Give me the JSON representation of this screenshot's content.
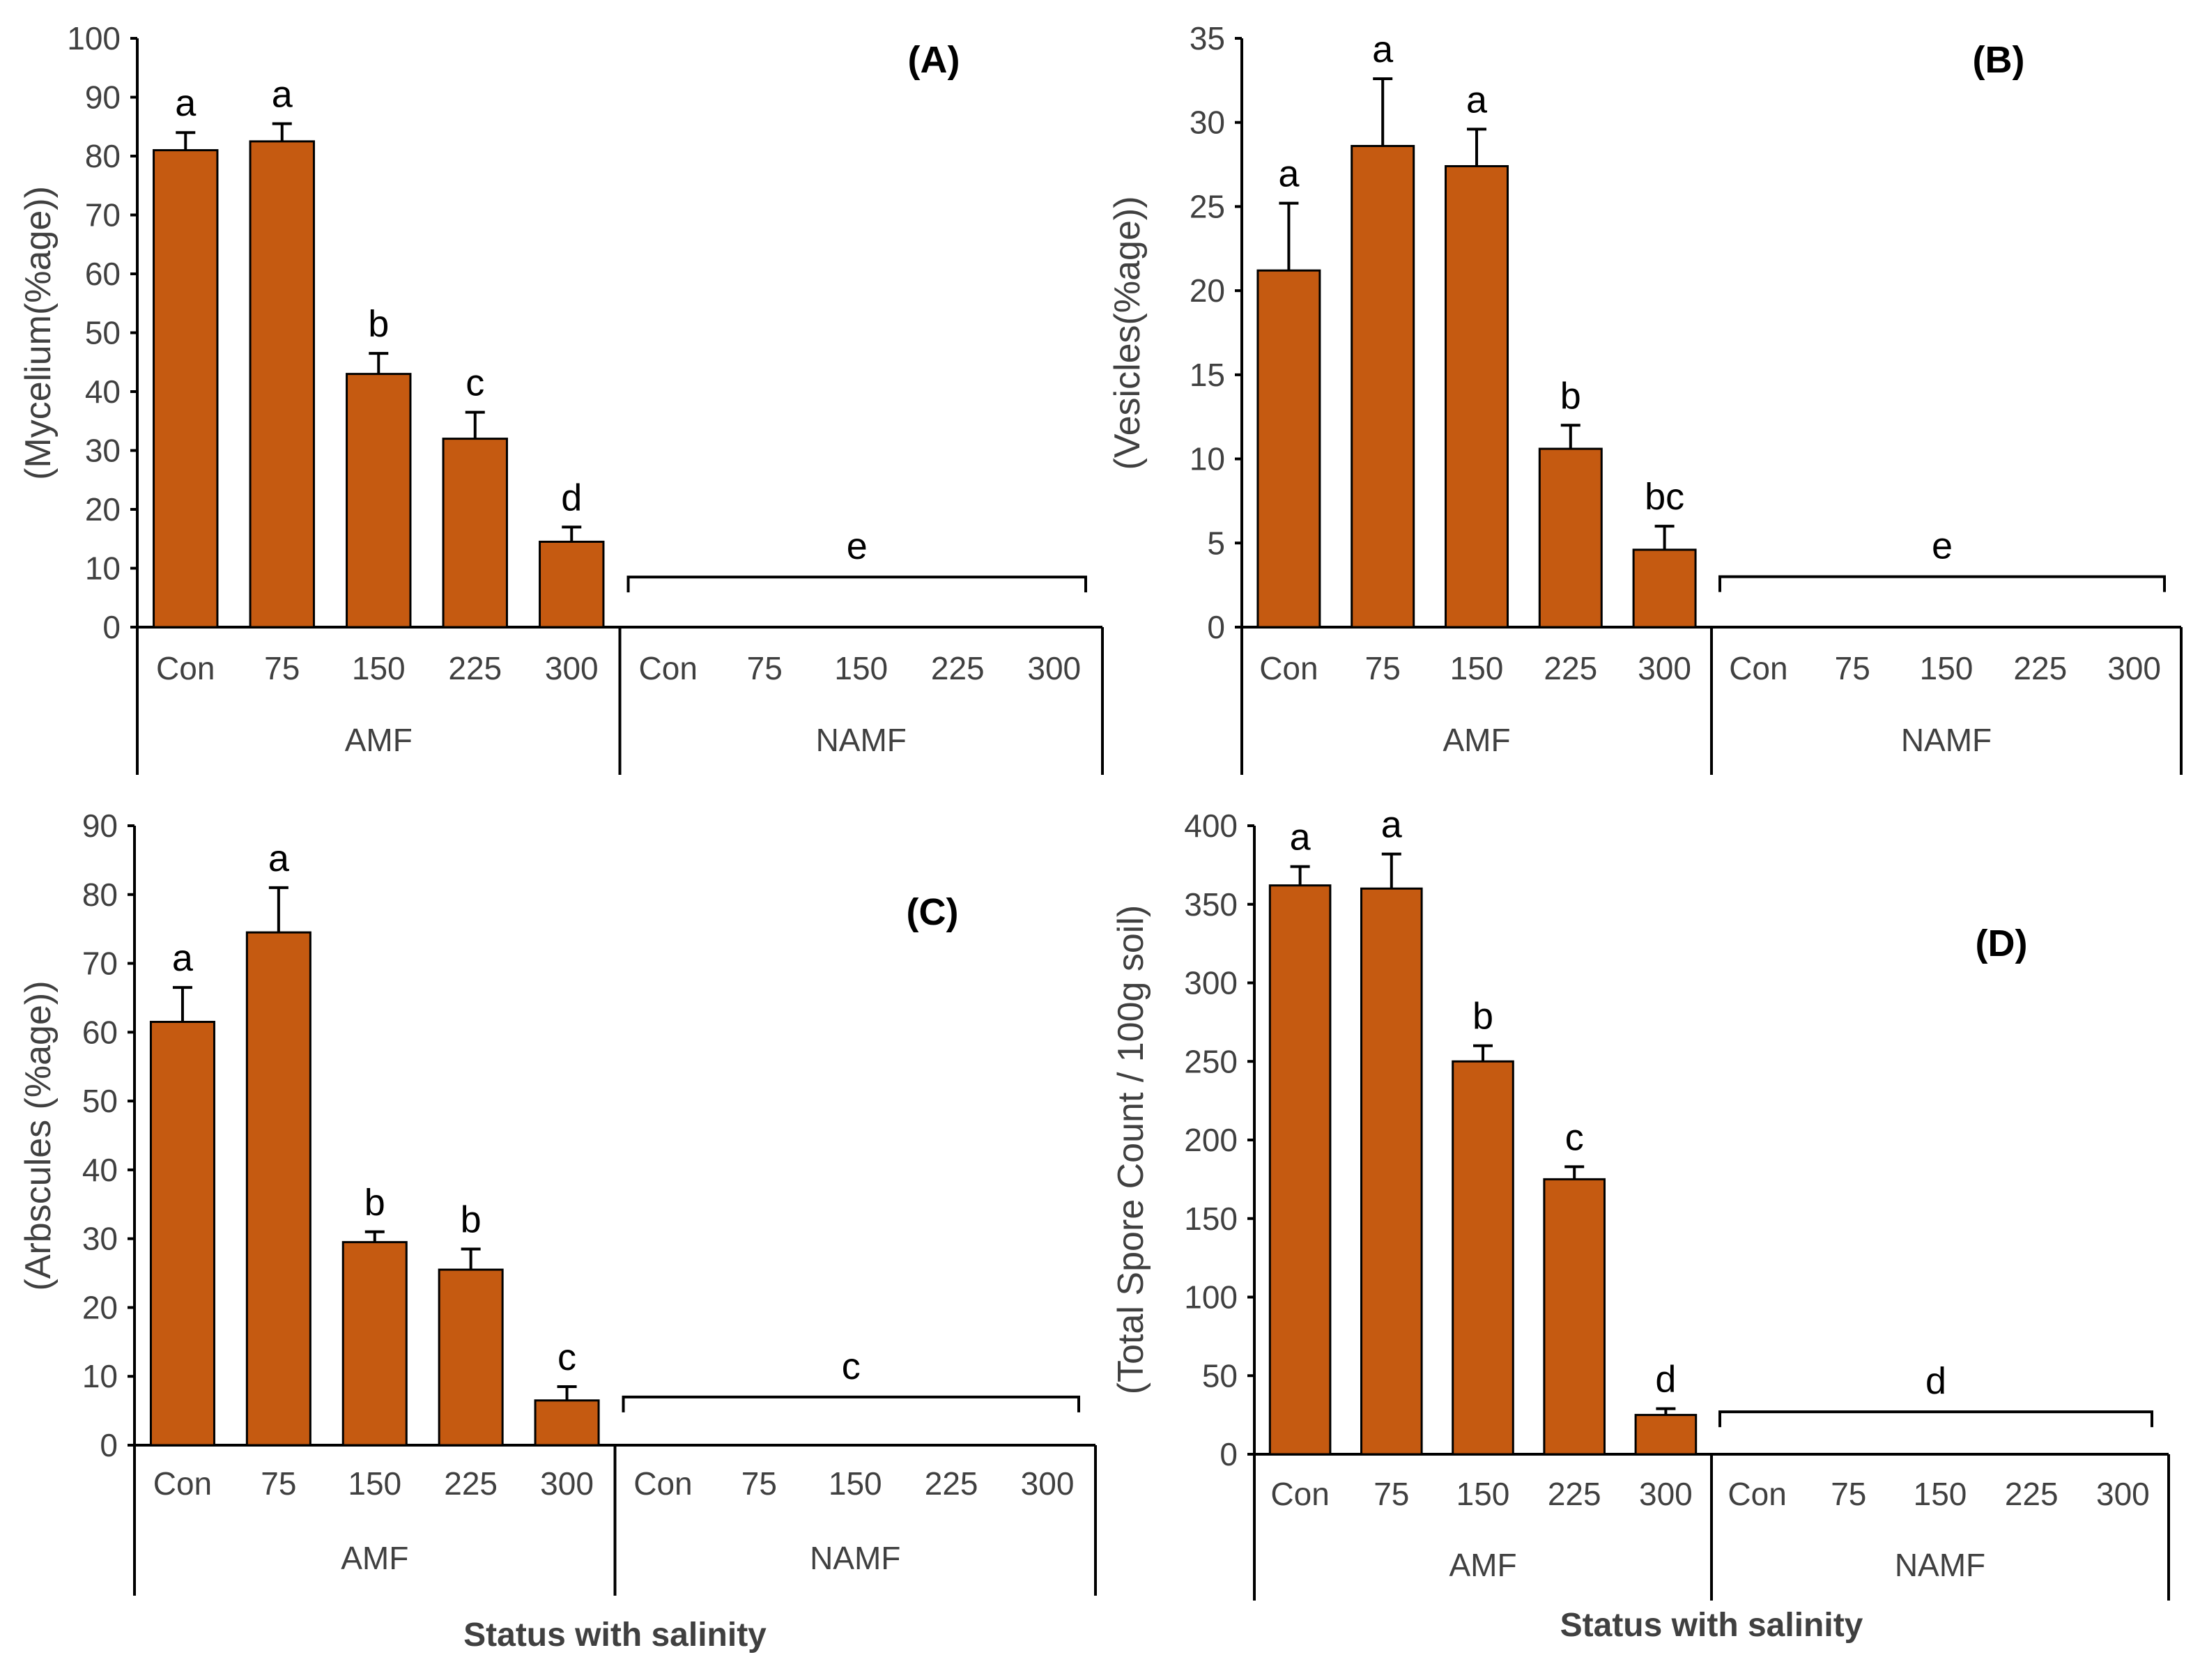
{
  "colors": {
    "bar": "#C55A11",
    "axis": "#000000",
    "text": "#404040"
  },
  "chart_data": [
    {
      "type": "bar",
      "panel_label": "(A)",
      "ylabel": "(Mycelium(%age))",
      "xlabel": "",
      "ylim": [
        0,
        100
      ],
      "yticks": [
        0,
        10,
        20,
        30,
        40,
        50,
        60,
        70,
        80,
        90,
        100
      ],
      "groups": [
        {
          "name": "AMF",
          "categories": [
            "Con",
            "75",
            "150",
            "225",
            "300"
          ],
          "values": [
            81,
            82.5,
            43,
            32,
            14.5
          ],
          "errors": [
            3,
            3,
            3.5,
            4.5,
            2.5
          ],
          "letters": [
            "a",
            "a",
            "b",
            "c",
            "d"
          ]
        },
        {
          "name": "NAMF",
          "categories": [
            "Con",
            "75",
            "150",
            "225",
            "300"
          ],
          "values": [
            0,
            0,
            0,
            0,
            0
          ],
          "errors": [
            0,
            0,
            0,
            0,
            0
          ],
          "bracket_letter": "e",
          "bracket_value": 8.5
        }
      ]
    },
    {
      "type": "bar",
      "panel_label": "(B)",
      "ylabel": "(Vesicles(%age))",
      "xlabel": "",
      "ylim": [
        0,
        35
      ],
      "yticks": [
        0,
        5,
        10,
        15,
        20,
        25,
        30,
        35
      ],
      "groups": [
        {
          "name": "AMF",
          "categories": [
            "Con",
            "75",
            "150",
            "225",
            "300"
          ],
          "values": [
            21.2,
            28.6,
            27.4,
            10.6,
            4.6
          ],
          "errors": [
            4,
            4,
            2.2,
            1.4,
            1.4
          ],
          "letters": [
            "a",
            "a",
            "a",
            "b",
            "bc"
          ]
        },
        {
          "name": "NAMF",
          "categories": [
            "Con",
            "75",
            "150",
            "225",
            "300"
          ],
          "values": [
            0,
            0,
            0,
            0,
            0
          ],
          "errors": [
            0,
            0,
            0,
            0,
            0
          ],
          "bracket_letter": "e",
          "bracket_value": 3
        }
      ]
    },
    {
      "type": "bar",
      "panel_label": "(C)",
      "ylabel": "(Arbscules (%age))",
      "xlabel": "Status with salinity",
      "ylim": [
        0,
        90
      ],
      "yticks": [
        0,
        10,
        20,
        30,
        40,
        50,
        60,
        70,
        80,
        90
      ],
      "groups": [
        {
          "name": "AMF",
          "categories": [
            "Con",
            "75",
            "150",
            "225",
            "300"
          ],
          "values": [
            61.5,
            74.5,
            29.5,
            25.5,
            6.5
          ],
          "errors": [
            5,
            6.5,
            1.5,
            3,
            2
          ],
          "letters": [
            "a",
            "a",
            "b",
            "b",
            "c"
          ]
        },
        {
          "name": "NAMF",
          "categories": [
            "Con",
            "75",
            "150",
            "225",
            "300"
          ],
          "values": [
            0,
            0,
            0,
            0,
            0
          ],
          "errors": [
            0,
            0,
            0,
            0,
            0
          ],
          "bracket_letter": "c",
          "bracket_value": 7
        }
      ]
    },
    {
      "type": "bar",
      "panel_label": "(D)",
      "ylabel": "(Total Spore Count / 100g soil)",
      "xlabel": "Status with salinity",
      "ylim": [
        0,
        400
      ],
      "yticks": [
        0,
        50,
        100,
        150,
        200,
        250,
        300,
        350,
        400
      ],
      "groups": [
        {
          "name": "AMF",
          "categories": [
            "Con",
            "75",
            "150",
            "225",
            "300"
          ],
          "values": [
            362,
            360,
            250,
            175,
            25
          ],
          "errors": [
            12,
            22,
            10,
            8,
            4
          ],
          "letters": [
            "a",
            "a",
            "b",
            "c",
            "d"
          ]
        },
        {
          "name": "NAMF",
          "categories": [
            "Con",
            "75",
            "150",
            "225",
            "300"
          ],
          "values": [
            0,
            0,
            0,
            0,
            0
          ],
          "errors": [
            0,
            0,
            0,
            0,
            0
          ],
          "bracket_letter": "d",
          "bracket_value": 27
        }
      ]
    }
  ]
}
